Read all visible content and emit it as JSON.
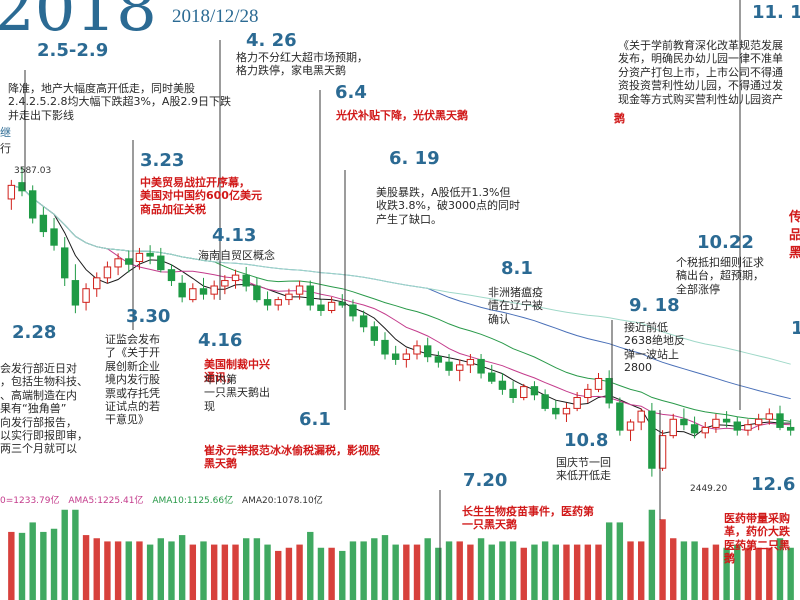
{
  "header": {
    "big_number": "2018",
    "date": "2018/12/28"
  },
  "colors": {
    "date": "#2b6a93",
    "red_note": "#d11a1a",
    "up_candle": "#d0201a",
    "down_candle": "#1f9a45",
    "ma5": "#1a1a1a",
    "ma10": "#c43c8c",
    "ma20": "#2a9a4a",
    "ma60": "#4a70b8",
    "ma120": "#9fd8c8",
    "volume_up": "#d0201a",
    "volume_down": "#1f9a45"
  },
  "annotations": [
    {
      "id": "d-2-5-2-9",
      "date": "2.5-2.9",
      "note": "降准，地产大幅度高开低走，同时美股\n2.4.2.5.2.8均大幅下跌超3%，A股2.9日下跌\n并走出下影线"
    },
    {
      "id": "d-2-28",
      "date": "2.28",
      "note": "会发行部近日对\n，包括生物科技、\n、高端制造在内\n果有“独角兽”\n向发行部报告，\n以实行即报即审，\n两三个月就可以"
    },
    {
      "id": "d-3-23",
      "date": "3.23",
      "red": "中美贸易战拉开序幕，\n美国对中国约600亿美元\n商品加征关税"
    },
    {
      "id": "d-3-30",
      "date": "3.30",
      "note": "证监会发布\n了《关于开\n展创新企业\n境内发行股\n票或存托凭\n证试点的若\n干意见》"
    },
    {
      "id": "d-4-13",
      "date": "4.13",
      "note": "海南自贸区概念"
    },
    {
      "id": "d-4-16",
      "date": "4.16",
      "red": "美国制裁中兴\n通讯，",
      "note": "年内第\n一只黑天鹅出\n现"
    },
    {
      "id": "d-4-26",
      "date": "4. 26",
      "note": "格力不分红大超市场预期，\n格力跌停，家电黑天鹅"
    },
    {
      "id": "d-6-4",
      "date": "6.4",
      "red": "光伏补贴下降，光伏黑天鹅"
    },
    {
      "id": "d-6-1",
      "date": "6.1",
      "red": "崔永元举报范冰冰偷税漏税，影视股\n黑天鹅"
    },
    {
      "id": "d-6-19",
      "date": "6. 19",
      "note": "美股暴跌，A股低开1.3%但\n收跌3.8%，破3000点的同时\n产生了缺口。"
    },
    {
      "id": "d-8-1",
      "date": "8.1",
      "note": "非洲猪瘟疫\n情在辽宁被\n确认"
    },
    {
      "id": "d-7-20",
      "date": "7.20",
      "red": "长生生物疫苗事件，医药第\n一只黑天鹅"
    },
    {
      "id": "d-9-18",
      "date": "9. 18",
      "note": "接近前低\n2638绝地反\n弹一波站上\n2800"
    },
    {
      "id": "d-10-8",
      "date": "10.8",
      "note": "国庆节一回\n来低开低走"
    },
    {
      "id": "d-10-22",
      "date": "10.22",
      "note": "个税抵扣细则征求\n稿出台，超预期，\n全部涨停"
    },
    {
      "id": "d-11-1",
      "date": "11. 1",
      "note": "《关于学前教育深化改革规范发展\n发布，明确民办幼儿园一律不准单\n分资产打包上市，上市公司不得通\n资投资营利性幼儿园，不得通过发\n现金等方式购买营利性幼儿园资产",
      "red": "鹅"
    },
    {
      "id": "d-12-6",
      "date": "12.6",
      "red": "医药带量采购\n革，药价大跌\n医药第二只黑\n鹅"
    }
  ],
  "price_labels": {
    "high": "3587.03",
    "low": "2449.20"
  },
  "volume_legend": {
    "vol": "0=1233.79亿",
    "ma5": "AMA5:1225.41亿",
    "ma10": "AMA10:1125.66亿",
    "ma20": "AMA20:1078.10亿"
  },
  "edge_text": {
    "left_ji": "继",
    "left_xing": "行",
    "right_1": "传",
    "right_2": "品",
    "right_3": "黑",
    "right_4": "1"
  },
  "chart_data": {
    "type": "candlestick",
    "title": "",
    "y_unit": "index points",
    "ylim": [
      2400,
      3650
    ],
    "ohlc": [
      [
        3470,
        3540,
        3430,
        3520
      ],
      [
        3530,
        3587.03,
        3480,
        3500
      ],
      [
        3500,
        3520,
        3380,
        3400
      ],
      [
        3410,
        3440,
        3330,
        3350
      ],
      [
        3360,
        3400,
        3280,
        3300
      ],
      [
        3290,
        3330,
        3150,
        3180
      ],
      [
        3170,
        3230,
        3050,
        3080
      ],
      [
        3090,
        3160,
        3060,
        3140
      ],
      [
        3140,
        3200,
        3110,
        3180
      ],
      [
        3180,
        3240,
        3160,
        3220
      ],
      [
        3220,
        3270,
        3190,
        3250
      ],
      [
        3250,
        3280,
        3200,
        3230
      ],
      [
        3240,
        3290,
        3210,
        3270
      ],
      [
        3270,
        3300,
        3230,
        3260
      ],
      [
        3260,
        3290,
        3200,
        3210
      ],
      [
        3210,
        3230,
        3150,
        3170
      ],
      [
        3160,
        3190,
        3090,
        3110
      ],
      [
        3100,
        3160,
        3090,
        3140
      ],
      [
        3140,
        3180,
        3100,
        3120
      ],
      [
        3120,
        3170,
        3100,
        3150
      ],
      [
        3150,
        3190,
        3120,
        3170
      ],
      [
        3170,
        3210,
        3140,
        3190
      ],
      [
        3190,
        3220,
        3130,
        3150
      ],
      [
        3150,
        3180,
        3090,
        3100
      ],
      [
        3100,
        3130,
        3060,
        3080
      ],
      [
        3080,
        3110,
        3060,
        3100
      ],
      [
        3100,
        3140,
        3080,
        3120
      ],
      [
        3120,
        3170,
        3100,
        3150
      ],
      [
        3150,
        3170,
        3060,
        3080
      ],
      [
        3080,
        3100,
        3040,
        3060
      ],
      [
        3060,
        3110,
        3050,
        3090
      ],
      [
        3090,
        3120,
        3070,
        3080
      ],
      [
        3080,
        3100,
        3020,
        3040
      ],
      [
        3040,
        3060,
        2980,
        3000
      ],
      [
        3000,
        3020,
        2930,
        2950
      ],
      [
        2950,
        2980,
        2880,
        2900
      ],
      [
        2900,
        2930,
        2860,
        2880
      ],
      [
        2880,
        2920,
        2850,
        2900
      ],
      [
        2900,
        2950,
        2880,
        2930
      ],
      [
        2930,
        2960,
        2870,
        2890
      ],
      [
        2890,
        2910,
        2850,
        2870
      ],
      [
        2870,
        2900,
        2820,
        2840
      ],
      [
        2840,
        2880,
        2800,
        2860
      ],
      [
        2860,
        2900,
        2830,
        2880
      ],
      [
        2880,
        2900,
        2810,
        2830
      ],
      [
        2830,
        2860,
        2790,
        2800
      ],
      [
        2800,
        2830,
        2750,
        2770
      ],
      [
        2770,
        2800,
        2720,
        2740
      ],
      [
        2740,
        2790,
        2730,
        2780
      ],
      [
        2780,
        2800,
        2730,
        2750
      ],
      [
        2750,
        2770,
        2690,
        2700
      ],
      [
        2700,
        2730,
        2660,
        2680
      ],
      [
        2680,
        2720,
        2650,
        2700
      ],
      [
        2700,
        2760,
        2690,
        2740
      ],
      [
        2740,
        2790,
        2720,
        2770
      ],
      [
        2770,
        2830,
        2760,
        2810
      ],
      [
        2810,
        2840,
        2700,
        2720
      ],
      [
        2720,
        2740,
        2600,
        2620
      ],
      [
        2620,
        2660,
        2580,
        2650
      ],
      [
        2650,
        2700,
        2620,
        2690
      ],
      [
        2690,
        2720,
        2449.2,
        2480
      ],
      [
        2480,
        2620,
        2470,
        2600
      ],
      [
        2600,
        2680,
        2590,
        2660
      ],
      [
        2660,
        2700,
        2620,
        2640
      ],
      [
        2640,
        2670,
        2590,
        2610
      ],
      [
        2610,
        2650,
        2590,
        2630
      ],
      [
        2630,
        2680,
        2610,
        2660
      ],
      [
        2660,
        2690,
        2630,
        2650
      ],
      [
        2650,
        2670,
        2600,
        2620
      ],
      [
        2620,
        2660,
        2600,
        2640
      ],
      [
        2640,
        2680,
        2620,
        2660
      ],
      [
        2660,
        2700,
        2640,
        2680
      ],
      [
        2680,
        2710,
        2620,
        2630
      ],
      [
        2630,
        2660,
        2600,
        2620
      ]
    ]
  }
}
